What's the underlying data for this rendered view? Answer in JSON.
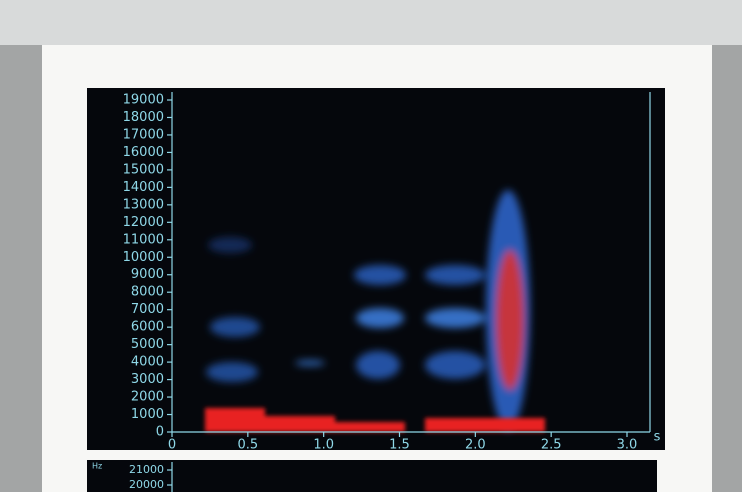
{
  "chart_data": [
    {
      "type": "spectrogram",
      "x_label": "s",
      "xlim": [
        0,
        3.0
      ],
      "xticks": [
        0,
        0.5,
        {
          "value": 1,
          "label": "1.0"
        },
        1.5,
        {
          "value": 2,
          "label": "2.0"
        },
        2.5,
        {
          "value": 3,
          "label": "3.0"
        }
      ],
      "ylim": [
        0,
        19000
      ],
      "yticks": [
        0,
        1000,
        2000,
        3000,
        4000,
        5000,
        6000,
        7000,
        8000,
        9000,
        10000,
        11000,
        12000,
        13000,
        14000,
        15000,
        16000,
        17000,
        18000,
        19000
      ]
    },
    {
      "type": "spectrogram",
      "y_label": "Hz",
      "yticks": [
        20000,
        21000
      ]
    }
  ]
}
